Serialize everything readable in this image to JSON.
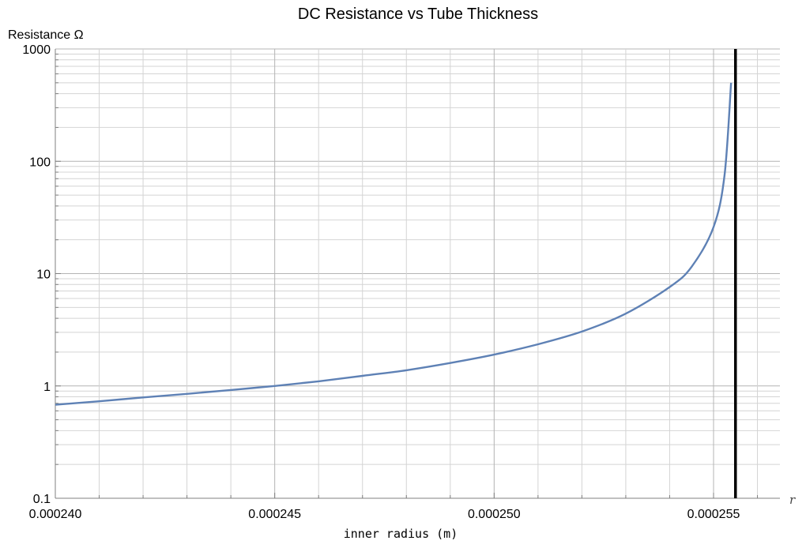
{
  "chart_data": {
    "type": "line",
    "title": "DC Resistance vs Tube Thickness",
    "xlabel": "inner radius  (m)",
    "ylabel": "Resistance Ω",
    "axis_variable": "r",
    "y_scale": "log",
    "xlim": [
      0.00024,
      0.0002565
    ],
    "ylim": [
      0.1,
      1000
    ],
    "x_ticks": [
      "0.000240",
      "0.000245",
      "0.000250",
      "0.000255"
    ],
    "x_tick_values": [
      0.00024,
      0.000245,
      0.00025,
      0.000255
    ],
    "y_ticks": [
      "0.1",
      "1",
      "10",
      "100",
      "1000"
    ],
    "y_tick_values": [
      0.1,
      1,
      10,
      100,
      1000
    ],
    "grid": true,
    "vertical_line_x": 0.0002555,
    "series": [
      {
        "color": "#5e81b5",
        "x": [
          0.00024,
          0.000241,
          0.000242,
          0.000243,
          0.000244,
          0.000245,
          0.000246,
          0.000247,
          0.000248,
          0.000249,
          0.00025,
          0.000251,
          0.000252,
          0.000253,
          0.000254,
          0.0002545,
          0.000255,
          0.00025525,
          0.0002554
        ],
        "y": [
          0.68,
          0.73,
          0.79,
          0.85,
          0.92,
          1.0,
          1.1,
          1.23,
          1.38,
          1.6,
          1.9,
          2.35,
          3.05,
          4.4,
          7.6,
          11.5,
          26,
          75,
          500
        ]
      }
    ]
  }
}
